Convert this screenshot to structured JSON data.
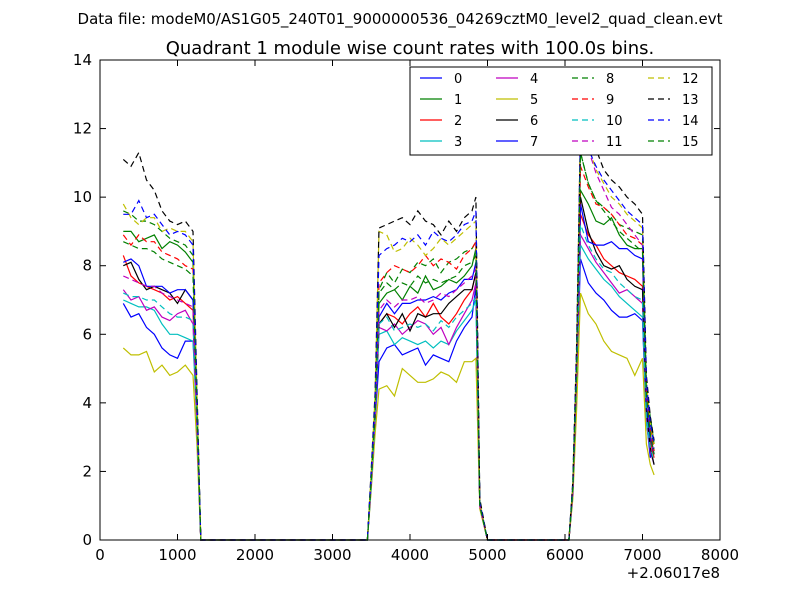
{
  "suptitle": "Data file: modeM0/AS1G05_240T01_9000000536_04269cztM0_level2_quad_clean.evt",
  "chart_data": {
    "type": "line",
    "title": "Quadrant 1 module wise count rates with 100.0s bins.",
    "xlabel": "",
    "ylabel": "",
    "x_offset_label": "+2.06017e8",
    "xlim": [
      0,
      8000
    ],
    "ylim": [
      0,
      14
    ],
    "xticks": [
      "0",
      "1000",
      "2000",
      "3000",
      "4000",
      "5000",
      "6000",
      "7000",
      "8000"
    ],
    "yticks": [
      "0",
      "2",
      "4",
      "6",
      "8",
      "10",
      "12",
      "14"
    ],
    "x": [
      300,
      400,
      500,
      600,
      700,
      800,
      900,
      1000,
      1100,
      1200,
      1250,
      1300,
      1350,
      1400,
      1500,
      3300,
      3400,
      3450,
      3500,
      3550,
      3600,
      3700,
      3800,
      3900,
      4000,
      4100,
      4200,
      4300,
      4400,
      4500,
      4600,
      4700,
      4800,
      4850,
      4900,
      5000,
      5050,
      5100,
      5200,
      5900,
      6000,
      6050,
      6100,
      6150,
      6200,
      6300,
      6400,
      6500,
      6600,
      6700,
      6800,
      6900,
      7000,
      7050,
      7100,
      7150
    ],
    "legend": {
      "location": "upper right",
      "columns": 4
    },
    "series": [
      {
        "name": "0",
        "color": "#0000ff",
        "style": "solid",
        "values": [
          6.9,
          6.5,
          6.6,
          6.2,
          6.0,
          5.6,
          5.4,
          5.3,
          5.8,
          5.8,
          4.0,
          0,
          0,
          0,
          0,
          0,
          0,
          0,
          1.8,
          3.5,
          5.2,
          5.6,
          5.7,
          5.4,
          5.5,
          5.6,
          5.1,
          5.4,
          5.3,
          5.2,
          5.8,
          6.2,
          6.5,
          7.4,
          1.0,
          0,
          0,
          0,
          0,
          0,
          0,
          0,
          1.4,
          4.5,
          8.2,
          7.5,
          7.2,
          7.0,
          6.7,
          6.5,
          6.5,
          6.6,
          6.4,
          3.5,
          2.4,
          2.7
        ]
      },
      {
        "name": "1",
        "color": "#008000",
        "style": "solid",
        "values": [
          9.0,
          9.0,
          8.7,
          8.8,
          8.9,
          8.5,
          8.7,
          8.6,
          8.4,
          8.1,
          4.1,
          0,
          0,
          0,
          0,
          0,
          0,
          0,
          1.8,
          3.9,
          6.9,
          7.2,
          7.3,
          7.0,
          7.4,
          7.2,
          7.7,
          7.3,
          7.4,
          7.6,
          7.5,
          7.7,
          8.0,
          8.5,
          1.0,
          0,
          0,
          0,
          0,
          0,
          0,
          0,
          1.4,
          5.0,
          10.2,
          9.8,
          9.3,
          9.2,
          9.4,
          8.9,
          8.6,
          8.5,
          8.5,
          4.3,
          3.6,
          2.8
        ]
      },
      {
        "name": "2",
        "color": "#ff0000",
        "style": "solid",
        "values": [
          8.3,
          7.7,
          7.5,
          7.4,
          7.3,
          7.2,
          7.0,
          7.1,
          6.9,
          6.7,
          3.5,
          0,
          0,
          0,
          0,
          0,
          0,
          0,
          1.7,
          3.6,
          6.3,
          6.6,
          6.5,
          6.3,
          6.6,
          6.8,
          6.5,
          6.9,
          6.5,
          6.3,
          6.6,
          7.0,
          7.3,
          7.8,
          1.0,
          0,
          0,
          0,
          0,
          0,
          0,
          0,
          1.4,
          4.6,
          9.5,
          8.9,
          8.6,
          8.2,
          8.0,
          7.8,
          7.7,
          7.6,
          7.4,
          3.7,
          2.9,
          2.4
        ]
      },
      {
        "name": "3",
        "color": "#00bfbf",
        "style": "solid",
        "values": [
          7.0,
          6.9,
          6.8,
          6.8,
          6.7,
          6.3,
          6.0,
          6.0,
          5.9,
          5.8,
          3.4,
          0,
          0,
          0,
          0,
          0,
          0,
          0,
          1.6,
          3.6,
          6.0,
          6.1,
          5.7,
          5.9,
          5.8,
          5.7,
          5.8,
          5.6,
          5.8,
          5.7,
          6.1,
          6.4,
          6.7,
          7.0,
          1.0,
          0,
          0,
          0,
          0,
          0,
          0,
          0,
          1.3,
          4.6,
          8.6,
          8.2,
          7.9,
          7.6,
          7.4,
          7.1,
          6.9,
          6.7,
          6.5,
          3.4,
          2.6,
          2.2
        ]
      },
      {
        "name": "4",
        "color": "#bf00bf",
        "style": "solid",
        "values": [
          7.3,
          7.0,
          7.1,
          6.7,
          6.8,
          6.5,
          6.4,
          6.6,
          6.7,
          6.3,
          3.3,
          0,
          0,
          0,
          0,
          0,
          0,
          0,
          1.6,
          3.4,
          6.2,
          6.1,
          6.3,
          6.0,
          6.2,
          6.4,
          6.3,
          6.0,
          6.2,
          5.7,
          6.2,
          6.6,
          7.0,
          7.5,
          1.0,
          0,
          0,
          0,
          0,
          0,
          0,
          0,
          1.3,
          4.5,
          8.9,
          8.5,
          8.1,
          7.8,
          7.5,
          7.2,
          7.3,
          7.1,
          6.9,
          3.6,
          2.6,
          2.2
        ]
      },
      {
        "name": "5",
        "color": "#bfbf00",
        "style": "solid",
        "values": [
          5.6,
          5.4,
          5.4,
          5.5,
          4.9,
          5.1,
          4.8,
          4.9,
          5.1,
          4.8,
          2.8,
          0,
          0,
          0,
          0,
          0,
          0,
          0,
          1.5,
          3.1,
          4.4,
          4.5,
          4.2,
          5.0,
          4.8,
          4.6,
          4.6,
          4.7,
          4.9,
          4.8,
          4.6,
          5.2,
          5.2,
          5.3,
          0.9,
          0,
          0,
          0,
          0,
          0,
          0,
          0,
          1.2,
          3.8,
          7.2,
          6.6,
          6.3,
          5.8,
          5.5,
          5.4,
          5.3,
          4.8,
          5.3,
          2.8,
          2.2,
          1.9
        ]
      },
      {
        "name": "6",
        "color": "#000000",
        "style": "solid",
        "values": [
          8.0,
          8.1,
          7.6,
          7.3,
          7.4,
          7.3,
          7.2,
          6.9,
          7.3,
          7.0,
          3.5,
          0,
          0,
          0,
          0,
          0,
          0,
          0,
          1.7,
          3.6,
          6.3,
          6.6,
          6.2,
          6.6,
          6.1,
          6.6,
          6.5,
          6.6,
          6.6,
          6.9,
          7.1,
          7.3,
          7.3,
          7.8,
          1.0,
          0,
          0,
          0,
          0,
          0,
          0,
          0,
          1.4,
          4.8,
          10.0,
          9.0,
          8.4,
          8.0,
          7.9,
          8.0,
          7.6,
          7.4,
          7.3,
          3.8,
          2.7,
          2.2
        ]
      },
      {
        "name": "7",
        "color": "#0000ff",
        "style": "solid",
        "values": [
          8.1,
          8.2,
          8.0,
          7.4,
          7.4,
          7.4,
          7.2,
          7.3,
          7.3,
          7.0,
          3.6,
          0,
          0,
          0,
          0,
          0,
          0,
          0,
          1.8,
          3.7,
          6.5,
          6.9,
          6.6,
          6.9,
          6.9,
          7.0,
          7.0,
          7.1,
          7.0,
          7.2,
          7.3,
          7.6,
          7.6,
          8.1,
          1.0,
          0,
          0,
          0,
          0,
          0,
          0,
          0,
          1.4,
          4.9,
          9.8,
          8.7,
          8.6,
          8.6,
          8.7,
          8.5,
          8.5,
          8.3,
          8.2,
          4.0,
          3.0,
          2.5
        ]
      },
      {
        "name": "8",
        "color": "#008000",
        "style": "dashed",
        "values": [
          9.6,
          9.5,
          9.3,
          9.3,
          9.2,
          9.0,
          8.8,
          8.7,
          8.6,
          8.3,
          4.1,
          0,
          0,
          0,
          0,
          0,
          0,
          0,
          1.9,
          3.8,
          7.3,
          7.8,
          7.5,
          7.9,
          7.8,
          8.1,
          8.0,
          8.2,
          7.8,
          8.1,
          8.2,
          8.4,
          8.5,
          8.7,
          1.1,
          0,
          0,
          0,
          0,
          0,
          0,
          0,
          1.5,
          5.1,
          11.3,
          10.4,
          9.9,
          9.7,
          9.5,
          9.2,
          9.1,
          9.0,
          8.9,
          4.5,
          3.3,
          2.6
        ]
      },
      {
        "name": "9",
        "color": "#ff0000",
        "style": "dashed",
        "values": [
          8.9,
          8.6,
          8.9,
          8.7,
          8.7,
          8.4,
          8.3,
          8.2,
          8.0,
          7.9,
          3.9,
          0,
          0,
          0,
          0,
          0,
          0,
          0,
          1.8,
          3.8,
          7.5,
          7.8,
          8.0,
          7.9,
          7.8,
          8.0,
          8.3,
          8.0,
          8.2,
          8.1,
          7.9,
          8.3,
          8.5,
          8.7,
          1.0,
          0,
          0,
          0,
          0,
          0,
          0,
          0,
          1.5,
          5.1,
          10.9,
          10.3,
          9.8,
          9.7,
          9.5,
          9.2,
          8.9,
          8.8,
          8.6,
          4.3,
          3.2,
          2.6
        ]
      },
      {
        "name": "10",
        "color": "#00bfbf",
        "style": "dashed",
        "values": [
          7.2,
          7.1,
          7.1,
          7.0,
          7.0,
          6.8,
          6.6,
          6.5,
          6.5,
          6.4,
          3.3,
          0,
          0,
          0,
          0,
          0,
          0,
          0,
          1.6,
          3.5,
          6.3,
          6.5,
          6.1,
          6.2,
          6.3,
          6.2,
          6.3,
          6.1,
          6.4,
          6.2,
          6.5,
          6.7,
          6.9,
          7.1,
          1.0,
          0,
          0,
          0,
          0,
          0,
          0,
          0,
          1.4,
          4.7,
          9.2,
          8.6,
          8.2,
          7.9,
          7.8,
          7.5,
          7.3,
          7.1,
          7.0,
          3.6,
          2.7,
          2.3
        ]
      },
      {
        "name": "11",
        "color": "#bf00bf",
        "style": "dashed",
        "values": [
          7.7,
          7.6,
          7.5,
          7.4,
          7.4,
          7.2,
          7.1,
          7.0,
          6.9,
          6.8,
          3.4,
          0,
          0,
          0,
          0,
          0,
          0,
          0,
          1.7,
          3.6,
          6.7,
          7.0,
          6.8,
          7.0,
          7.0,
          7.1,
          6.9,
          7.0,
          7.2,
          7.1,
          7.3,
          7.5,
          7.7,
          7.9,
          1.0,
          0,
          0,
          0,
          0,
          0,
          0,
          0,
          1.4,
          4.9,
          12.3,
          11.4,
          10.7,
          10.2,
          9.7,
          9.5,
          9.2,
          8.9,
          8.6,
          4.2,
          3.1,
          2.5
        ]
      },
      {
        "name": "12",
        "color": "#bfbf00",
        "style": "dashed",
        "values": [
          9.8,
          9.4,
          9.2,
          9.4,
          9.4,
          9.0,
          9.1,
          9.0,
          9.0,
          8.7,
          4.3,
          0,
          0,
          0,
          0,
          0,
          0,
          0,
          2.0,
          4.2,
          9.0,
          8.9,
          8.4,
          8.5,
          8.8,
          8.6,
          8.3,
          8.5,
          8.8,
          8.6,
          8.8,
          9.0,
          9.2,
          9.3,
          1.1,
          0,
          0,
          0,
          0,
          0,
          0,
          0,
          1.6,
          5.4,
          12.3,
          11.5,
          10.8,
          10.4,
          10.0,
          9.8,
          9.5,
          9.3,
          9.1,
          4.6,
          3.4,
          2.8
        ]
      },
      {
        "name": "13",
        "color": "#000000",
        "style": "dashed",
        "values": [
          11.1,
          10.9,
          11.3,
          10.5,
          10.2,
          9.6,
          9.3,
          9.2,
          9.3,
          9.0,
          4.5,
          0,
          0,
          0,
          0,
          0,
          0,
          0,
          2.1,
          4.3,
          9.1,
          9.2,
          9.3,
          9.4,
          9.2,
          9.6,
          9.3,
          9.2,
          8.9,
          9.3,
          9.0,
          9.4,
          9.6,
          10.0,
          1.2,
          0,
          0,
          0,
          0,
          0,
          0,
          0,
          1.7,
          5.7,
          11.8,
          11.7,
          11.4,
          10.8,
          10.5,
          10.3,
          10.0,
          9.8,
          9.5,
          4.8,
          3.6,
          2.9
        ]
      },
      {
        "name": "14",
        "color": "#0000ff",
        "style": "dashed",
        "values": [
          9.5,
          9.5,
          9.9,
          9.4,
          9.5,
          9.2,
          8.9,
          9.0,
          8.9,
          8.6,
          4.2,
          0,
          0,
          0,
          0,
          0,
          0,
          0,
          2.0,
          4.1,
          8.3,
          8.5,
          8.6,
          8.8,
          8.7,
          8.9,
          8.6,
          9.0,
          8.8,
          8.7,
          8.9,
          9.2,
          9.3,
          9.6,
          1.1,
          0,
          0,
          0,
          0,
          0,
          0,
          0,
          1.6,
          5.5,
          12.0,
          11.4,
          10.9,
          10.5,
          10.2,
          9.9,
          9.6,
          9.4,
          9.2,
          4.6,
          3.4,
          2.8
        ]
      },
      {
        "name": "15",
        "color": "#008000",
        "style": "dashed",
        "values": [
          8.7,
          8.6,
          8.5,
          8.5,
          8.4,
          8.2,
          8.1,
          8.0,
          7.9,
          7.7,
          3.8,
          0,
          0,
          0,
          0,
          0,
          0,
          0,
          1.8,
          3.7,
          7.2,
          7.5,
          7.3,
          7.5,
          7.4,
          7.7,
          7.5,
          7.6,
          7.5,
          7.6,
          7.7,
          8.0,
          8.1,
          8.3,
          1.0,
          0,
          0,
          0,
          0,
          0,
          0,
          0,
          1.5,
          5.0,
          11.3,
          10.4,
          9.9,
          9.6,
          9.3,
          9.0,
          8.8,
          8.6,
          8.4,
          4.2,
          3.1,
          2.5
        ]
      }
    ]
  }
}
